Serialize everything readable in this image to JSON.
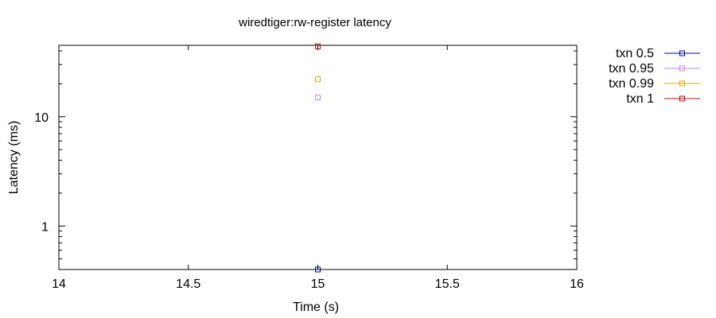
{
  "chart_data": {
    "type": "scatter",
    "title": "wiredtiger:rw-register latency",
    "xlabel": "Time (s)",
    "ylabel": "Latency (ms)",
    "xlim": [
      14,
      16
    ],
    "ylim": [
      0.4,
      45
    ],
    "yscale": "log",
    "x_ticks": [
      14,
      14.5,
      15,
      15.5,
      16
    ],
    "x_tick_labels": [
      "14",
      "14.5",
      "15",
      "15.5",
      "16"
    ],
    "y_ticks": [
      1,
      10
    ],
    "y_tick_labels": [
      "1",
      "10"
    ],
    "grid": false,
    "legend_position": "outside-right",
    "series": [
      {
        "name": "txn 0.5",
        "color": "#0000a0",
        "points": [
          [
            15,
            0.4
          ]
        ]
      },
      {
        "name": "txn 0.95",
        "color": "#c080ff",
        "points": [
          [
            15,
            15
          ]
        ]
      },
      {
        "name": "txn 0.99",
        "color": "#e0a000",
        "points": [
          [
            15,
            22
          ]
        ]
      },
      {
        "name": "txn 1",
        "color": "#c00000",
        "points": [
          [
            15,
            44
          ]
        ]
      }
    ]
  }
}
